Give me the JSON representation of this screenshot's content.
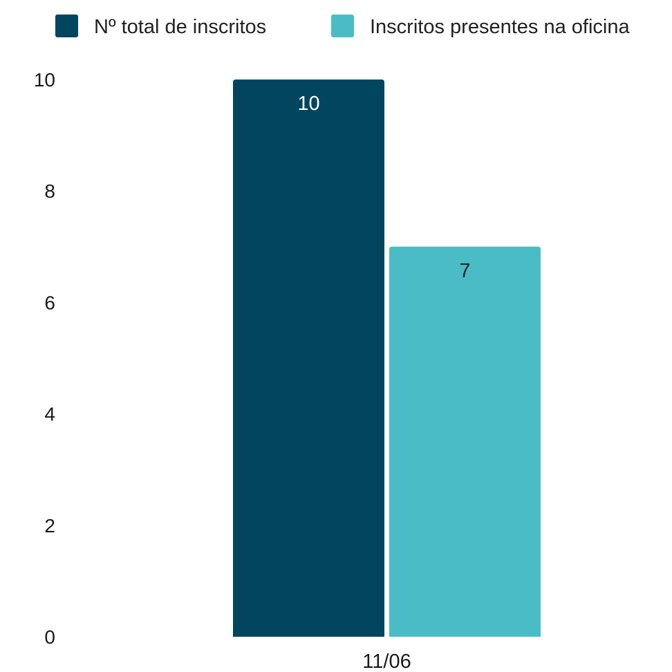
{
  "chart_data": {
    "type": "bar",
    "title": "",
    "xlabel": "",
    "ylabel": "",
    "categories": [
      "11/06"
    ],
    "series": [
      {
        "name": "Nº total de inscritos",
        "values": [
          10
        ],
        "color": "#02455f",
        "label_color": "#ffffff"
      },
      {
        "name": "Inscritos presentes na oficina",
        "values": [
          7
        ],
        "color": "#4abcc6",
        "label_color": "#222222"
      }
    ],
    "ylim": [
      0,
      10
    ],
    "yticks": [
      "0",
      "2",
      "4",
      "6",
      "8",
      "10"
    ],
    "data_labels": [
      "10",
      "7"
    ],
    "grid": false,
    "legend_position": "top"
  }
}
